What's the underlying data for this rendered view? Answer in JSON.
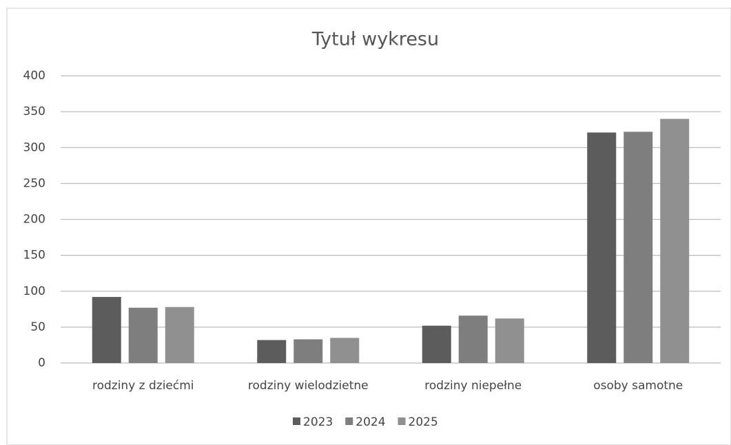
{
  "chart_data": {
    "type": "bar",
    "title": "Tytuł wykresu",
    "categories": [
      "rodziny z dziećmi",
      "rodziny wielodzietne",
      "rodziny niepełne",
      "osoby samotne"
    ],
    "series": [
      {
        "name": "2023",
        "color": "#5c5c5c",
        "values": [
          92,
          32,
          52,
          321
        ]
      },
      {
        "name": "2024",
        "color": "#7e7e7e",
        "values": [
          77,
          33,
          66,
          322
        ]
      },
      {
        "name": "2025",
        "color": "#909090",
        "values": [
          78,
          35,
          62,
          340
        ]
      }
    ],
    "ylim": [
      0,
      400
    ],
    "yticks": [
      0,
      50,
      100,
      150,
      200,
      250,
      300,
      350,
      400
    ],
    "grid": true,
    "legend": "bottom"
  }
}
